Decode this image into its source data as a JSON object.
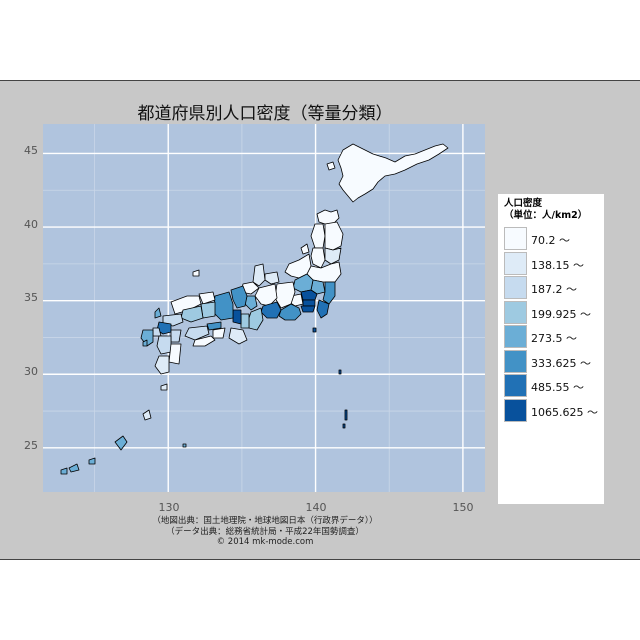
{
  "title": "都道府県別人口密度（等量分類）",
  "axes": {
    "x_ticks": [
      "130",
      "140",
      "150"
    ],
    "y_ticks": [
      "45",
      "40",
      "35",
      "30",
      "25"
    ],
    "xlim": [
      121.5,
      151.5
    ],
    "ylim": [
      22,
      47
    ]
  },
  "legend": {
    "title_line1": "人口密度",
    "title_line2": "（単位：人/km2）",
    "placement": "right",
    "items": [
      {
        "label": "70.2 ～",
        "color": "#f7fbff"
      },
      {
        "label": "138.15 ～",
        "color": "#deebf7"
      },
      {
        "label": "187.2 ～",
        "color": "#c6dbef"
      },
      {
        "label": "199.925 ～",
        "color": "#9ecae1"
      },
      {
        "label": "273.5 ～",
        "color": "#6baed6"
      },
      {
        "label": "333.625 ～",
        "color": "#4292c6"
      },
      {
        "label": "485.55 ～",
        "color": "#2171b5"
      },
      {
        "label": "1065.625 ～",
        "color": "#08519c"
      }
    ]
  },
  "source": {
    "line1": "（地図出典：国土地理院・地球地図日本（行政界データ））",
    "line2": "（データ出典：総務省統計局・平成22年国勢調査）",
    "line3": "© 2014 mk-mode.com"
  },
  "colors": {
    "panel_bg": "#b0c4de",
    "frame_bg": "#c8c8c8",
    "grid": "#ffffff"
  }
}
